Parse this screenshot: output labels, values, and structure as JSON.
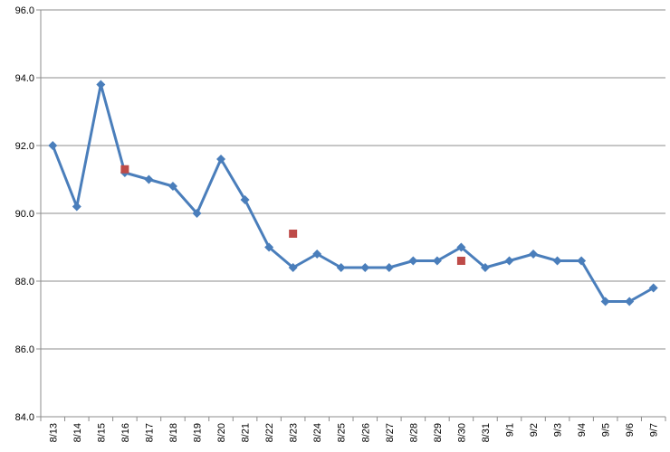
{
  "chart_data": {
    "type": "line",
    "title": "",
    "xlabel": "",
    "ylabel": "",
    "ylim": [
      84.0,
      96.0
    ],
    "y_ticks": [
      "84.0",
      "86.0",
      "88.0",
      "90.0",
      "92.0",
      "94.0",
      "96.0"
    ],
    "grid": "horizontal",
    "categories": [
      "8/13",
      "8/14",
      "8/15",
      "8/16",
      "8/17",
      "8/18",
      "8/19",
      "8/20",
      "8/21",
      "8/22",
      "8/23",
      "8/24",
      "8/25",
      "8/26",
      "8/27",
      "8/28",
      "8/29",
      "8/30",
      "8/31",
      "9/1",
      "9/2",
      "9/3",
      "9/4",
      "9/5",
      "9/6",
      "9/7"
    ],
    "series": [
      {
        "type": "line",
        "marker": "diamond",
        "color": "#4a7ebb",
        "values": [
          92.0,
          90.2,
          93.8,
          91.2,
          91.0,
          90.8,
          90.0,
          91.6,
          90.4,
          89.0,
          88.4,
          88.8,
          88.4,
          88.4,
          88.4,
          88.6,
          88.6,
          89.0,
          88.4,
          88.6,
          88.8,
          88.6,
          88.6,
          87.4,
          87.4,
          87.8
        ]
      },
      {
        "type": "scatter",
        "marker": "square",
        "color": "#be4b48",
        "values": [
          null,
          null,
          null,
          91.3,
          null,
          null,
          null,
          null,
          null,
          null,
          89.4,
          null,
          null,
          null,
          null,
          null,
          null,
          88.6,
          null,
          null,
          null,
          null,
          null,
          null,
          null,
          null
        ]
      }
    ]
  }
}
